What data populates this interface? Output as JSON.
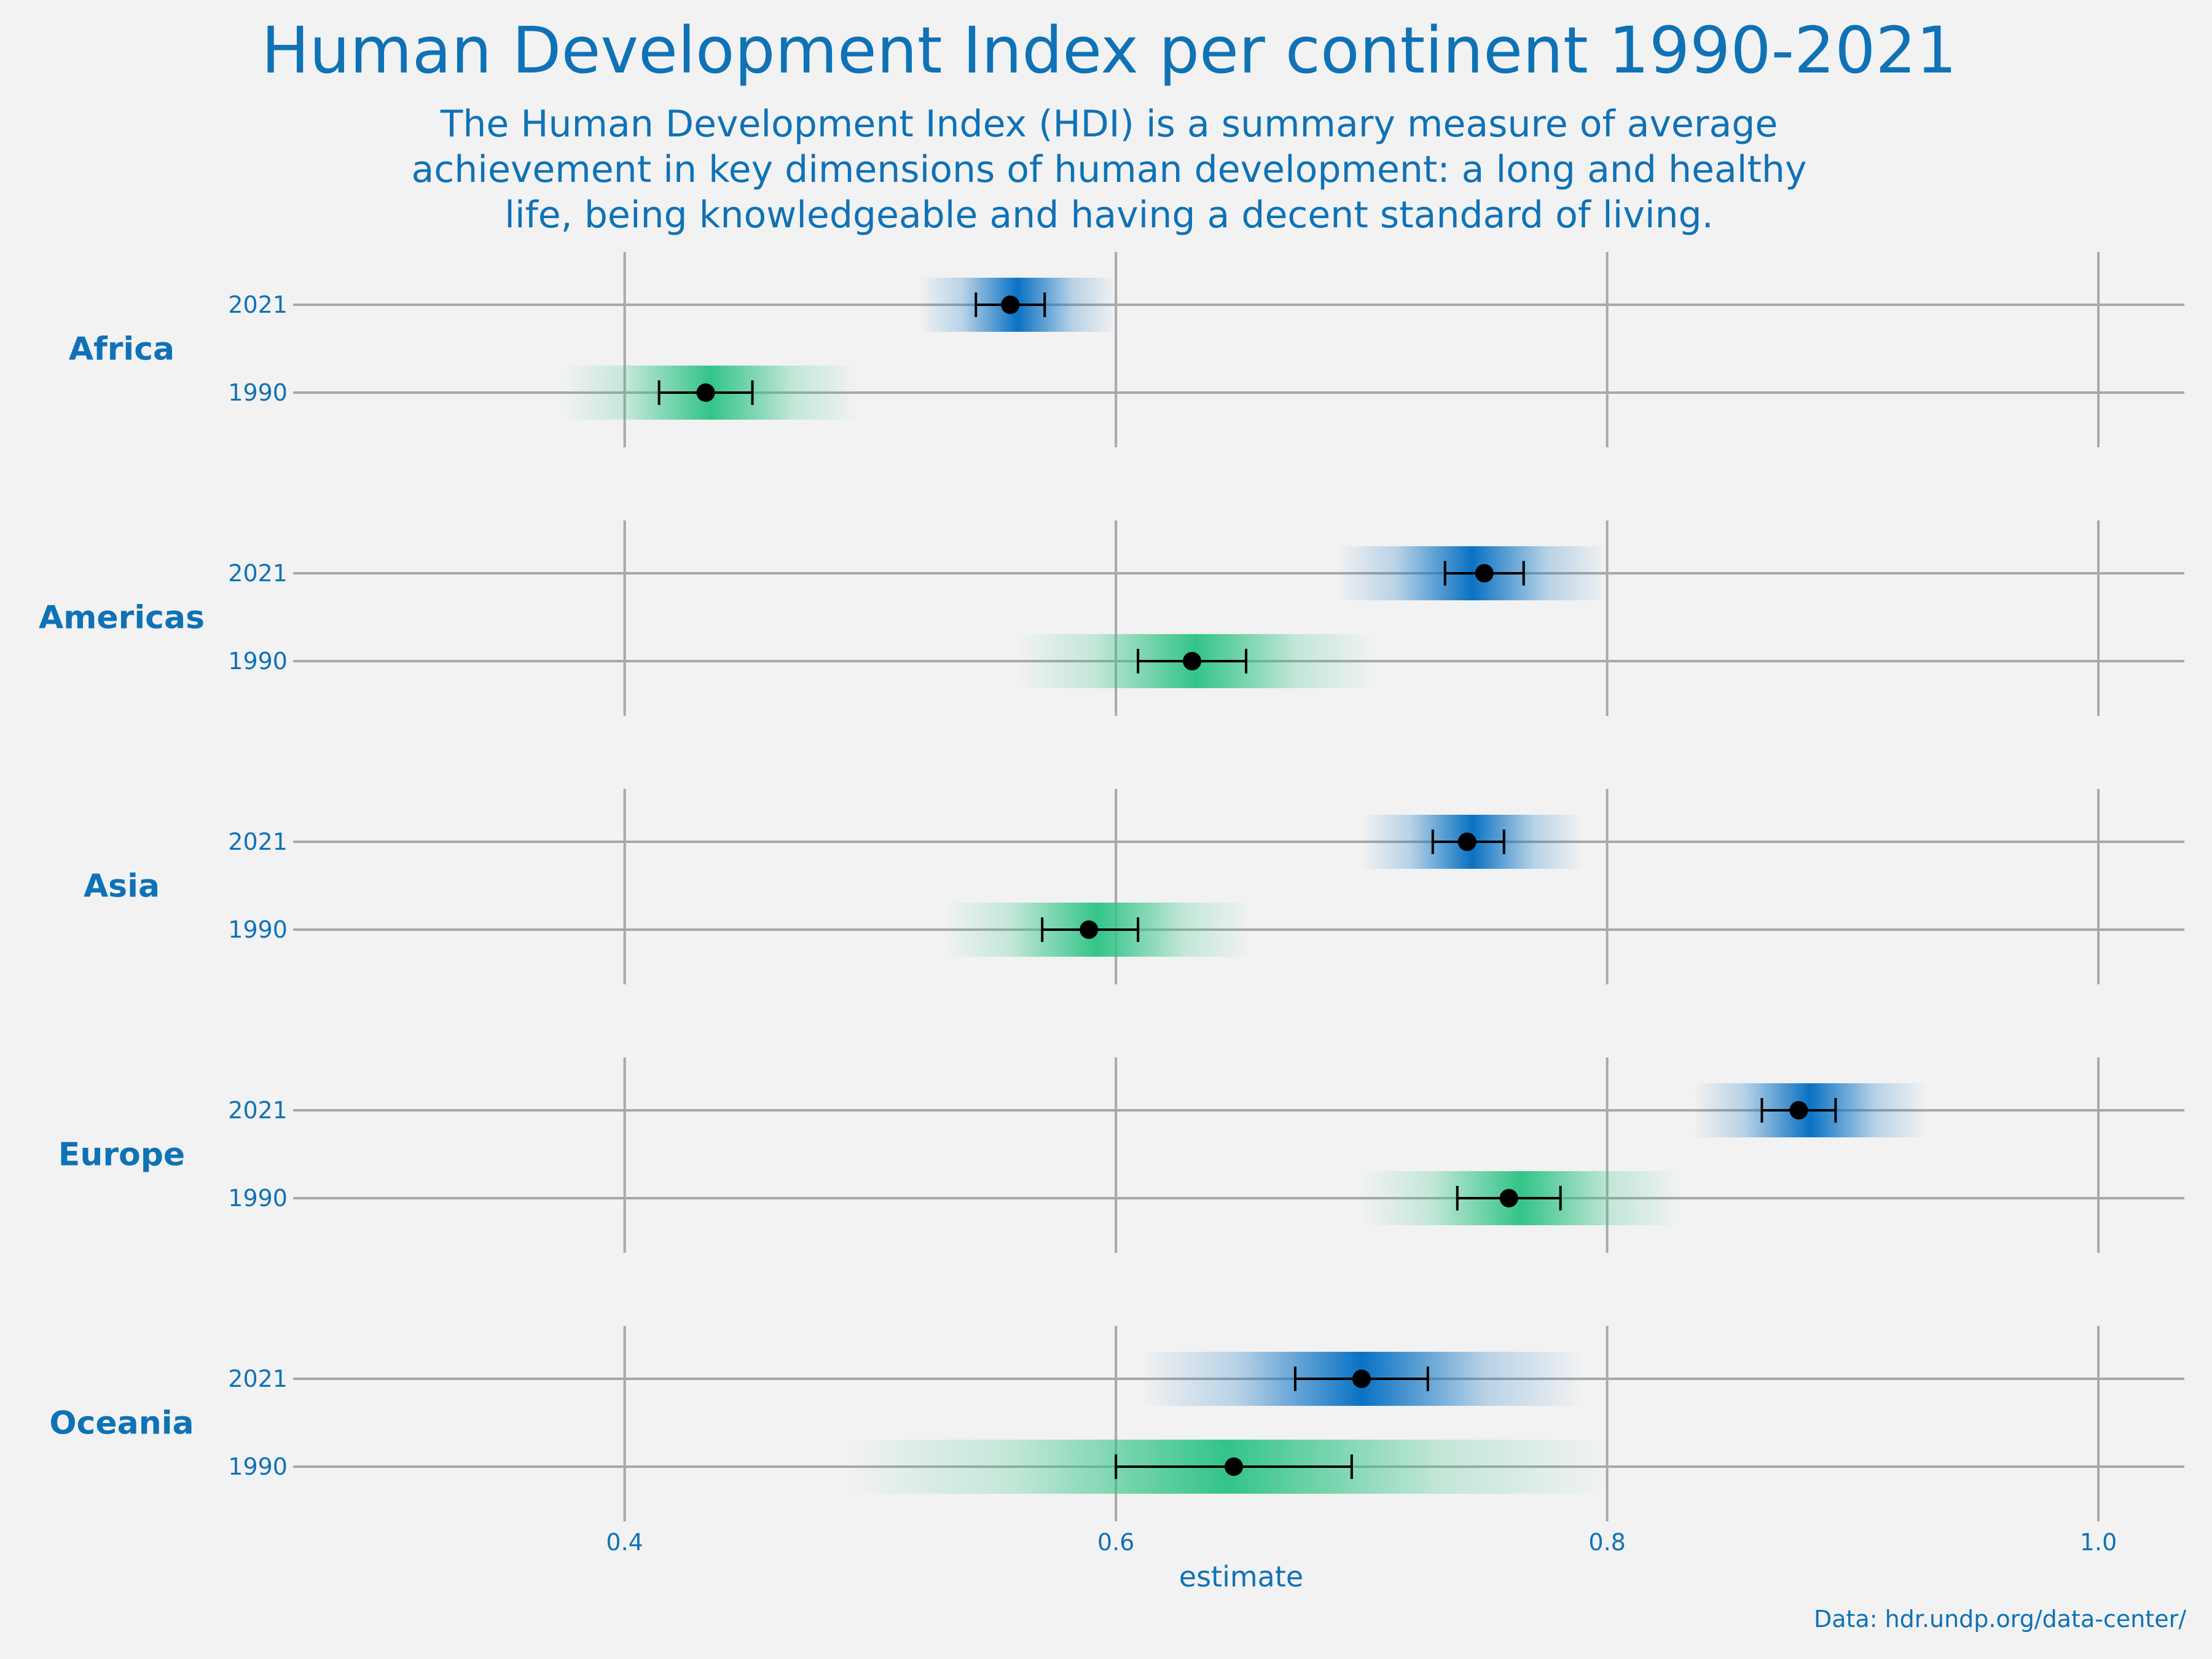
{
  "colors": {
    "text": "#0f72b6",
    "grid": "#a8a8a8",
    "background": "#f2f2f2",
    "band_2021": "#0a72c4",
    "band_1990": "#33c488",
    "point": "#000000"
  },
  "chart_data": {
    "type": "interval",
    "title": "Human Development Index per continent 1990-2021",
    "subtitle": [
      "The Human Development Index (HDI) is a summary measure of average",
      "achievement in key dimensions of human development: a long and healthy",
      "life, being knowledgeable and having a decent standard of living."
    ],
    "xlabel": "estimate",
    "caption": "Data: hdr.undp.org/data-center/",
    "xlim": [
      0.265,
      1.035
    ],
    "xticks": [
      0.4,
      0.6,
      0.8,
      1.0
    ],
    "xtick_labels": [
      "0.4",
      "0.6",
      "0.8",
      "1.0"
    ],
    "years": [
      "2021",
      "1990"
    ],
    "panels": [
      {
        "continent": "Africa",
        "series": [
          {
            "year": "2021",
            "estimate": 0.557,
            "ci": [
              0.543,
              0.571
            ],
            "spread": [
              0.52,
              0.6
            ]
          },
          {
            "year": "1990",
            "estimate": 0.433,
            "ci": [
              0.414,
              0.452
            ],
            "spread": [
              0.375,
              0.495
            ]
          }
        ]
      },
      {
        "continent": "Americas",
        "series": [
          {
            "year": "2021",
            "estimate": 0.75,
            "ci": [
              0.734,
              0.766
            ],
            "spread": [
              0.69,
              0.8
            ]
          },
          {
            "year": "1990",
            "estimate": 0.631,
            "ci": [
              0.609,
              0.653
            ],
            "spread": [
              0.56,
              0.705
            ]
          }
        ]
      },
      {
        "continent": "Asia",
        "series": [
          {
            "year": "2021",
            "estimate": 0.743,
            "ci": [
              0.729,
              0.758
            ],
            "spread": [
              0.7,
              0.79
            ]
          },
          {
            "year": "1990",
            "estimate": 0.589,
            "ci": [
              0.57,
              0.609
            ],
            "spread": [
              0.53,
              0.655
            ]
          }
        ]
      },
      {
        "continent": "Europe",
        "series": [
          {
            "year": "2021",
            "estimate": 0.878,
            "ci": [
              0.863,
              0.893
            ],
            "spread": [
              0.835,
              0.93
            ]
          },
          {
            "year": "1990",
            "estimate": 0.76,
            "ci": [
              0.739,
              0.781
            ],
            "spread": [
              0.7,
              0.83
            ]
          }
        ]
      },
      {
        "continent": "Oceania",
        "series": [
          {
            "year": "2021",
            "estimate": 0.7,
            "ci": [
              0.673,
              0.727
            ],
            "spread": [
              0.61,
              0.79
            ]
          },
          {
            "year": "1990",
            "estimate": 0.648,
            "ci": [
              0.6,
              0.696
            ],
            "spread": [
              0.49,
              0.8
            ]
          }
        ]
      }
    ]
  }
}
